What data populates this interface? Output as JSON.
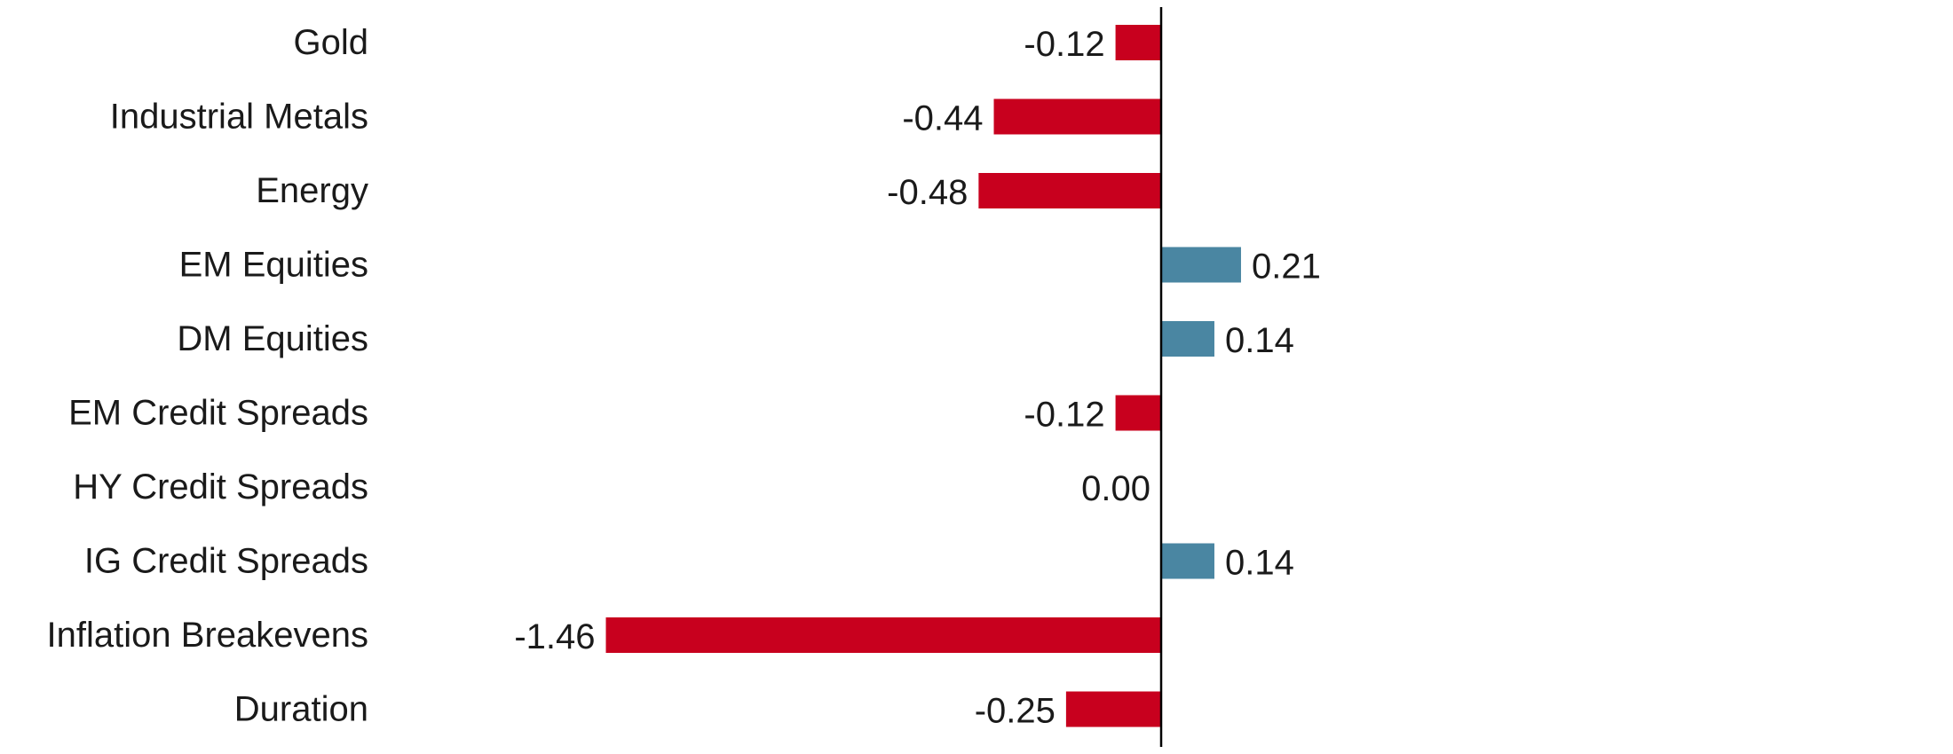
{
  "chart_data": {
    "type": "bar",
    "orientation": "horizontal",
    "categories": [
      "Gold",
      "Industrial Metals",
      "Energy",
      "EM Equities",
      "DM Equities",
      "EM Credit Spreads",
      "HY Credit Spreads",
      "IG Credit Spreads",
      "Inflation Breakevens",
      "Duration"
    ],
    "values": [
      -0.12,
      -0.44,
      -0.48,
      0.21,
      0.14,
      -0.12,
      0.0,
      0.14,
      -1.46,
      -0.25
    ],
    "value_labels": [
      "-0.12",
      "-0.44",
      "-0.48",
      "0.21",
      "0.14",
      "-0.12",
      "0.00",
      "0.14",
      "-1.46",
      "-0.25"
    ],
    "xlim": [
      -1.46,
      2.0
    ],
    "grid": false,
    "legend": "none",
    "colors": {
      "negative": "#c8001e",
      "positive": "#4a86a2",
      "axis": "#000000"
    }
  }
}
